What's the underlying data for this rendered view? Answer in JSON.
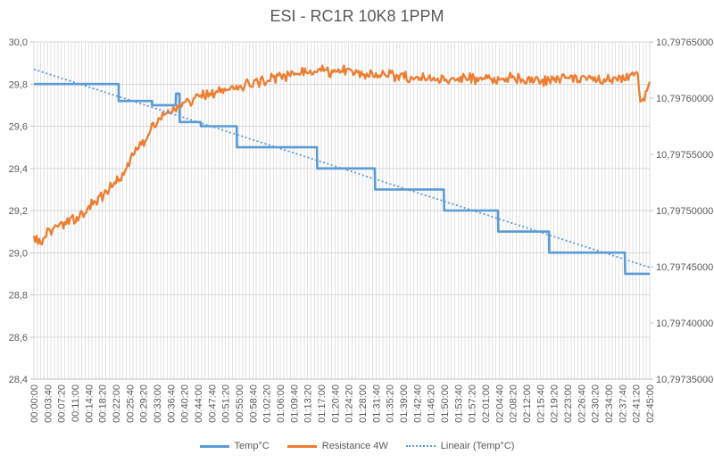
{
  "title": "ESI - RC1R 10K8 1PPM",
  "legend": {
    "items": [
      {
        "label": "Temp°C",
        "color": "#5B9BD5",
        "line_style": "solid"
      },
      {
        "label": "Resistance 4W",
        "color": "#ED7D31",
        "line_style": "solid"
      },
      {
        "label": "Lineair (Temp°C)",
        "color": "#5B9BD5",
        "line_style": "dotted"
      }
    ]
  },
  "colors": {
    "temp_series": "#5B9BD5",
    "resistance_series": "#ED7D31",
    "trendline": "#5B9BD5",
    "minor_gridline": "#e2e2e2",
    "major_gridline": "#d9d9d9",
    "axis_line": "#bfbfbf",
    "axis_text": "#595959",
    "title_text": "#595959",
    "background": "#ffffff"
  },
  "chart_data": {
    "type": "line",
    "title": "ESI - RC1R 10K8 1PPM",
    "legend_position": "bottom",
    "grid": {
      "horizontal": true,
      "vertical_minor": true
    },
    "x_axis": {
      "kind": "time",
      "range_seconds": [
        0,
        9900
      ],
      "tick_interval_seconds": 220,
      "minor_gridline_interval_seconds": 55,
      "tick_labels": [
        "00:00:00",
        "00:03:40",
        "00:07:20",
        "00:11:00",
        "00:14:40",
        "00:18:20",
        "00:22:00",
        "00:25:40",
        "00:29:20",
        "00:33:00",
        "00:36:40",
        "00:40:20",
        "00:44:00",
        "00:47:40",
        "00:51:20",
        "00:55:00",
        "00:58:40",
        "01:02:20",
        "01:06:00",
        "01:09:40",
        "01:13:20",
        "01:17:00",
        "01:20:40",
        "01:24:20",
        "01:28:00",
        "01:31:40",
        "01:35:20",
        "01:39:00",
        "01:42:40",
        "01:46:20",
        "01:50:00",
        "01:53:40",
        "01:57:20",
        "02:01:00",
        "02:04:40",
        "02:08:20",
        "02:12:00",
        "02:15:40",
        "02:19:20",
        "02:23:00",
        "02:26:40",
        "02:30:20",
        "02:34:00",
        "02:37:40",
        "02:41:20",
        "02:45:00"
      ]
    },
    "y_axis_left": {
      "series": "Temp°C",
      "range": [
        28.4,
        30.0
      ],
      "tick_interval": 0.2,
      "tick_labels": [
        "30,0",
        "29,8",
        "29,6",
        "29,4",
        "29,2",
        "29,0",
        "28,8",
        "28,6",
        "28,4"
      ]
    },
    "y_axis_right": {
      "series": "Resistance 4W",
      "range": [
        10.79735,
        10.79765
      ],
      "tick_interval": 5e-05,
      "tick_labels": [
        "10,79765000",
        "10,79760000",
        "10,79755000",
        "10,79750000",
        "10,79745000",
        "10,79740000",
        "10,79735000"
      ]
    },
    "series": [
      {
        "name": "Temp°C",
        "axis": "left",
        "color": "#5B9BD5",
        "style": "solid-step",
        "points": [
          [
            0,
            29.8
          ],
          [
            1363,
            29.8
          ],
          [
            1363,
            29.72
          ],
          [
            1900,
            29.72
          ],
          [
            1900,
            29.7
          ],
          [
            2280,
            29.7
          ],
          [
            2285,
            29.755
          ],
          [
            2340,
            29.755
          ],
          [
            2345,
            29.62
          ],
          [
            2680,
            29.62
          ],
          [
            2685,
            29.6
          ],
          [
            3260,
            29.6
          ],
          [
            3265,
            29.5
          ],
          [
            4550,
            29.5
          ],
          [
            4555,
            29.4
          ],
          [
            5480,
            29.4
          ],
          [
            5485,
            29.3
          ],
          [
            6590,
            29.3
          ],
          [
            6595,
            29.2
          ],
          [
            7460,
            29.2
          ],
          [
            7465,
            29.1
          ],
          [
            8280,
            29.1
          ],
          [
            8285,
            29.0
          ],
          [
            9500,
            29.0
          ],
          [
            9505,
            28.9
          ],
          [
            9900,
            28.9
          ]
        ]
      },
      {
        "name": "Resistance 4W",
        "axis": "right",
        "color": "#ED7D31",
        "style": "solid-noisy",
        "noise_peak_to_peak": 7.5e-06,
        "anchor_points": [
          [
            0,
            10.797476
          ],
          [
            120,
            10.797472
          ],
          [
            250,
            10.797482
          ],
          [
            530,
            10.797489
          ],
          [
            820,
            10.7975
          ],
          [
            1100,
            10.797513
          ],
          [
            1390,
            10.797528
          ],
          [
            1600,
            10.797548
          ],
          [
            1850,
            10.797568
          ],
          [
            2040,
            10.797585
          ],
          [
            2320,
            10.797594
          ],
          [
            2900,
            10.797605
          ],
          [
            3470,
            10.797613
          ],
          [
            4190,
            10.797622
          ],
          [
            4620,
            10.797625
          ],
          [
            5200,
            10.797622
          ],
          [
            5900,
            10.79762
          ],
          [
            6630,
            10.797617
          ],
          [
            7350,
            10.797618
          ],
          [
            8060,
            10.797616
          ],
          [
            8780,
            10.797617
          ],
          [
            9350,
            10.797616
          ],
          [
            9600,
            10.797621
          ],
          [
            9700,
            10.797625
          ],
          [
            9755,
            10.797593
          ],
          [
            9850,
            10.797608
          ],
          [
            9900,
            10.797617
          ]
        ]
      },
      {
        "name": "Lineair (Temp°C)",
        "axis": "left",
        "color": "#5B9BD5",
        "style": "dotted-trendline",
        "points": [
          [
            0,
            29.87
          ],
          [
            9900,
            28.93
          ]
        ]
      }
    ]
  }
}
